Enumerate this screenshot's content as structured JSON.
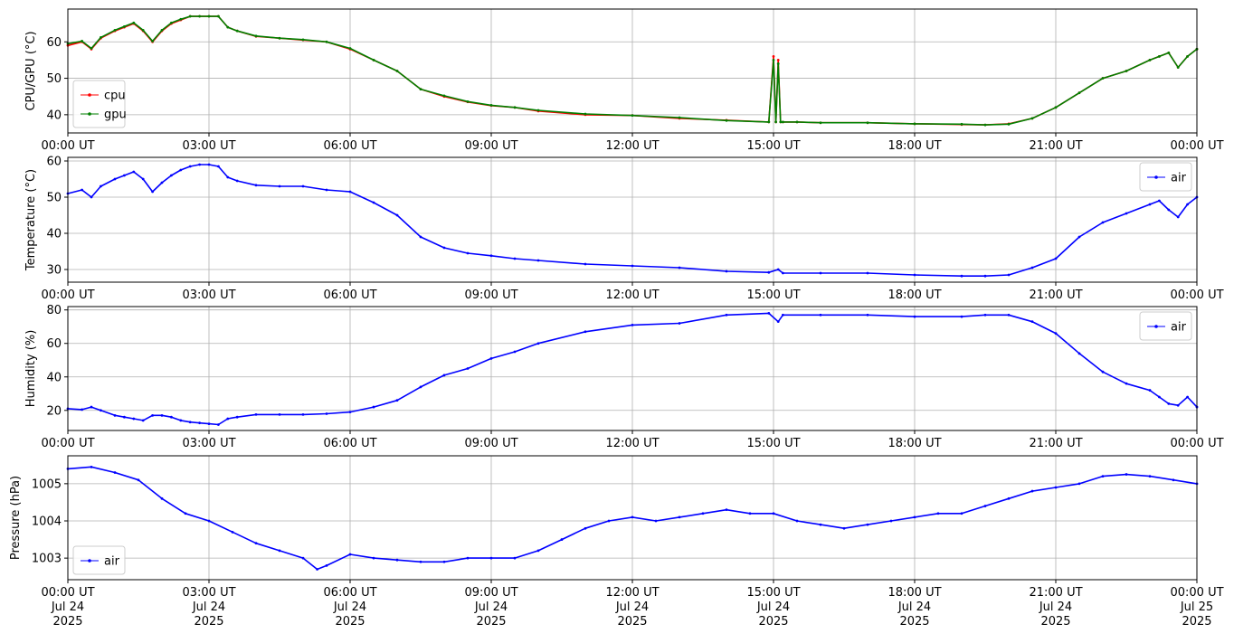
{
  "chart_data": [
    {
      "type": "line",
      "ylabel": "CPU/GPU (°C)",
      "ylim": [
        35,
        69
      ],
      "yticks": [
        40,
        50,
        60
      ],
      "x_tick_labels": [
        "00:00 UT",
        "03:00 UT",
        "06:00 UT",
        "09:00 UT",
        "12:00 UT",
        "15:00 UT",
        "18:00 UT",
        "21:00 UT",
        "00:00 UT"
      ],
      "grid": true,
      "legend_position": "lower-left",
      "series": [
        {
          "name": "cpu",
          "color": "#ff0000",
          "x": [
            0,
            0.3,
            0.5,
            0.7,
            1.0,
            1.2,
            1.4,
            1.6,
            1.8,
            2.0,
            2.2,
            2.4,
            2.6,
            2.8,
            3.0,
            3.2,
            3.4,
            3.6,
            4.0,
            4.5,
            5.0,
            5.5,
            6.0,
            6.5,
            7.0,
            7.5,
            8.0,
            8.5,
            9.0,
            9.5,
            10,
            11,
            12,
            13,
            14,
            14.9,
            15.0,
            15.05,
            15.1,
            15.15,
            15.2,
            15.5,
            16,
            17,
            18,
            19,
            19.5,
            20,
            20.5,
            21,
            21.5,
            22,
            22.5,
            23,
            23.2,
            23.4,
            23.6,
            23.8,
            24
          ],
          "y": [
            59,
            60,
            58,
            61,
            63,
            64,
            65,
            63,
            60,
            63,
            65,
            66,
            67,
            67,
            67,
            67,
            64,
            63,
            61.5,
            61,
            60.5,
            60,
            58,
            55,
            52,
            47,
            45,
            43.5,
            42.5,
            42,
            41,
            40,
            39.8,
            39,
            38.5,
            38,
            56,
            38,
            55,
            38,
            38,
            38,
            37.8,
            37.8,
            37.5,
            37.3,
            37.2,
            37.5,
            39,
            42,
            46,
            50,
            52,
            55,
            56,
            57,
            53,
            56,
            58
          ]
        },
        {
          "name": "gpu",
          "color": "#008000",
          "x": [
            0,
            0.3,
            0.5,
            0.7,
            1.0,
            1.2,
            1.4,
            1.6,
            1.8,
            2.0,
            2.2,
            2.4,
            2.6,
            2.8,
            3.0,
            3.2,
            3.4,
            3.6,
            4.0,
            4.5,
            5.0,
            5.5,
            6.0,
            6.5,
            7.0,
            7.5,
            8.0,
            8.5,
            9.0,
            9.5,
            10,
            11,
            12,
            13,
            14,
            14.9,
            15.0,
            15.05,
            15.1,
            15.15,
            15.2,
            15.5,
            16,
            17,
            18,
            19,
            19.5,
            20,
            20.5,
            21,
            21.5,
            22,
            22.5,
            23,
            23.2,
            23.4,
            23.6,
            23.8,
            24
          ],
          "y": [
            59.5,
            60.2,
            58.2,
            61.2,
            63.2,
            64.2,
            65.2,
            63.2,
            60.2,
            63.2,
            65.2,
            66.2,
            67,
            67,
            67,
            67,
            64,
            63,
            61.6,
            61,
            60.6,
            60,
            58.2,
            55,
            52,
            47,
            45.2,
            43.6,
            42.6,
            42,
            41.2,
            40.2,
            39.8,
            39.2,
            38.4,
            38,
            55,
            38,
            54,
            38,
            38,
            38,
            37.8,
            37.8,
            37.5,
            37.4,
            37.2,
            37.4,
            39,
            42,
            46,
            50,
            52,
            55,
            56,
            57,
            53,
            56,
            58
          ]
        }
      ]
    },
    {
      "type": "line",
      "ylabel": "Temperature (°C)",
      "ylim": [
        26.5,
        61
      ],
      "yticks": [
        30,
        40,
        50,
        60
      ],
      "x_tick_labels": [
        "00:00 UT",
        "03:00 UT",
        "06:00 UT",
        "09:00 UT",
        "12:00 UT",
        "15:00 UT",
        "18:00 UT",
        "21:00 UT",
        "00:00 UT"
      ],
      "grid": true,
      "legend_position": "upper-right",
      "series": [
        {
          "name": "air",
          "color": "#0000ff",
          "x": [
            0,
            0.3,
            0.5,
            0.7,
            1.0,
            1.2,
            1.4,
            1.6,
            1.8,
            2.0,
            2.2,
            2.4,
            2.6,
            2.8,
            3.0,
            3.2,
            3.4,
            3.6,
            4.0,
            4.5,
            5.0,
            5.5,
            6.0,
            6.5,
            7.0,
            7.5,
            8.0,
            8.5,
            9.0,
            9.5,
            10,
            11,
            12,
            13,
            14,
            14.9,
            15.1,
            15.2,
            16,
            17,
            18,
            19,
            19.5,
            20,
            20.5,
            21,
            21.5,
            22,
            22.5,
            23,
            23.2,
            23.4,
            23.6,
            23.8,
            24
          ],
          "y": [
            51,
            52,
            50,
            53,
            55,
            56,
            57,
            55,
            51.5,
            54,
            56,
            57.5,
            58.5,
            59,
            59,
            58.5,
            55.5,
            54.5,
            53.3,
            53,
            53,
            52,
            51.5,
            48.5,
            45,
            39,
            36,
            34.5,
            33.8,
            33,
            32.5,
            31.5,
            31,
            30.5,
            29.5,
            29.2,
            30,
            29,
            29,
            29,
            28.5,
            28.2,
            28.2,
            28.5,
            30.5,
            33,
            39,
            43,
            45.5,
            48,
            49,
            46.5,
            44.5,
            48,
            50
          ]
        }
      ]
    },
    {
      "type": "line",
      "ylabel": "Humidity (%)",
      "ylim": [
        8,
        82
      ],
      "yticks": [
        20,
        40,
        60,
        80
      ],
      "x_tick_labels": [
        "00:00 UT",
        "03:00 UT",
        "06:00 UT",
        "09:00 UT",
        "12:00 UT",
        "15:00 UT",
        "18:00 UT",
        "21:00 UT",
        "00:00 UT"
      ],
      "grid": true,
      "legend_position": "upper-right",
      "series": [
        {
          "name": "air",
          "color": "#0000ff",
          "x": [
            0,
            0.3,
            0.5,
            0.7,
            1.0,
            1.2,
            1.4,
            1.6,
            1.8,
            2.0,
            2.2,
            2.4,
            2.6,
            2.8,
            3.0,
            3.2,
            3.4,
            3.6,
            4.0,
            4.5,
            5.0,
            5.5,
            6.0,
            6.5,
            7.0,
            7.5,
            8.0,
            8.5,
            9.0,
            9.5,
            10,
            11,
            12,
            13,
            14,
            14.9,
            15.1,
            15.2,
            16,
            17,
            18,
            19,
            19.5,
            20,
            20.5,
            21,
            21.5,
            22,
            22.5,
            23,
            23.2,
            23.4,
            23.6,
            23.8,
            24
          ],
          "y": [
            21,
            20.5,
            22,
            20,
            17,
            16,
            15,
            14,
            17,
            17,
            16,
            14,
            13,
            12.5,
            12,
            11.5,
            15,
            16,
            17.5,
            17.5,
            17.5,
            18,
            19,
            22,
            26,
            34,
            41,
            45,
            51,
            55,
            60,
            67,
            71,
            72,
            77,
            78,
            73,
            77,
            77,
            77,
            76,
            76,
            77,
            77,
            73,
            66,
            54,
            43,
            36,
            32,
            28,
            24,
            23,
            28,
            22
          ]
        }
      ]
    },
    {
      "type": "line",
      "ylabel": "Pressure (hPa)",
      "ylim": [
        1002.42,
        1005.75
      ],
      "yticks": [
        1003,
        1004,
        1005
      ],
      "x_tick_labels": [
        "00:00 UT",
        "03:00 UT",
        "06:00 UT",
        "09:00 UT",
        "12:00 UT",
        "15:00 UT",
        "18:00 UT",
        "21:00 UT",
        "00:00 UT"
      ],
      "x_tick_sublabels": [
        "Jul 24",
        "Jul 24",
        "Jul 24",
        "Jul 24",
        "Jul 24",
        "Jul 24",
        "Jul 24",
        "Jul 24",
        "Jul 25"
      ],
      "x_tick_years": [
        "2025",
        "2025",
        "2025",
        "2025",
        "2025",
        "2025",
        "2025",
        "2025",
        "2025"
      ],
      "grid": true,
      "legend_position": "lower-left",
      "series": [
        {
          "name": "air",
          "color": "#0000ff",
          "x": [
            0,
            0.5,
            1.0,
            1.5,
            2.0,
            2.5,
            3.0,
            3.5,
            4.0,
            4.5,
            5.0,
            5.3,
            5.5,
            6.0,
            6.5,
            7.0,
            7.5,
            8.0,
            8.5,
            9.0,
            9.5,
            10,
            10.5,
            11,
            11.5,
            12,
            12.5,
            13,
            13.5,
            14,
            14.5,
            15,
            15.5,
            16,
            16.5,
            17,
            17.5,
            18,
            18.5,
            19,
            19.5,
            20,
            20.5,
            21,
            21.5,
            22,
            22.5,
            23,
            23.5,
            24
          ],
          "y": [
            1005.4,
            1005.45,
            1005.3,
            1005.1,
            1004.6,
            1004.2,
            1004.0,
            1003.7,
            1003.4,
            1003.2,
            1003.0,
            1002.7,
            1002.8,
            1003.1,
            1003.0,
            1002.95,
            1002.9,
            1002.9,
            1003.0,
            1003.0,
            1003.0,
            1003.2,
            1003.5,
            1003.8,
            1004.0,
            1004.1,
            1004.0,
            1004.1,
            1004.2,
            1004.3,
            1004.2,
            1004.2,
            1004.0,
            1003.9,
            1003.8,
            1003.9,
            1004.0,
            1004.1,
            1004.2,
            1004.2,
            1004.4,
            1004.6,
            1004.8,
            1004.9,
            1005.0,
            1005.2,
            1005.25,
            1005.2,
            1005.1,
            1005.0
          ]
        }
      ]
    }
  ]
}
